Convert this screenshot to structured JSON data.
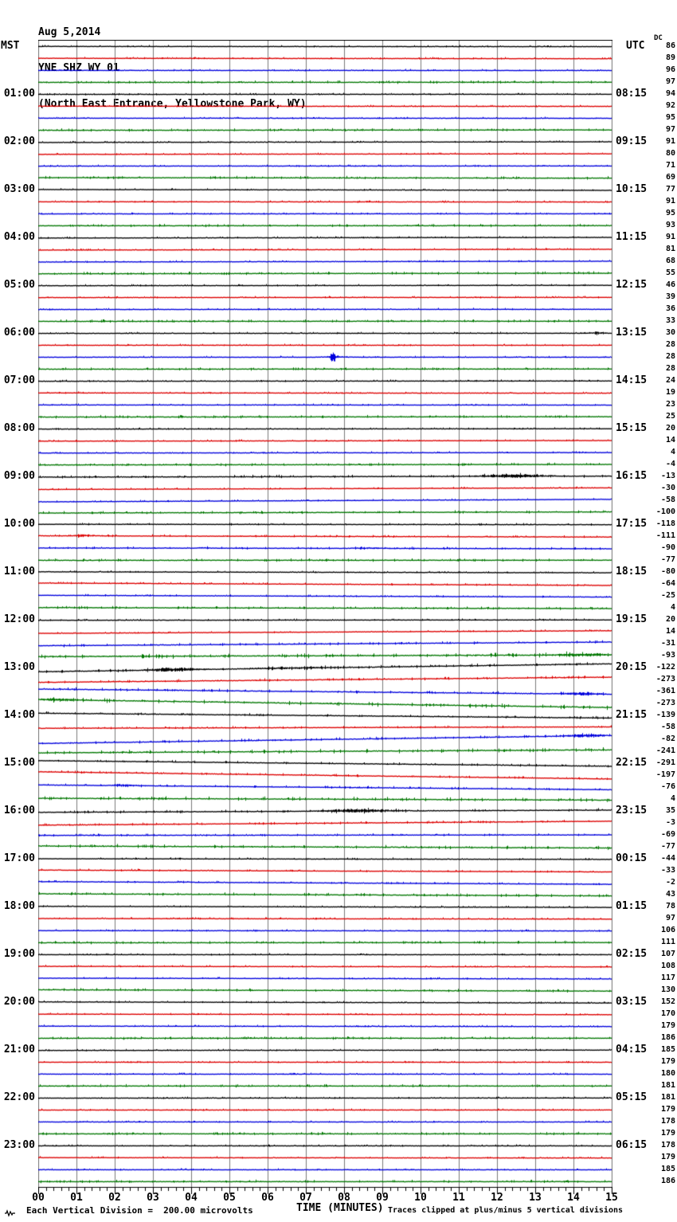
{
  "header": {
    "date": "Aug 5,2014",
    "station": "YNE SHZ WY 01",
    "location": "(North East Entrance, Yellowstone Park, WY)"
  },
  "left_axis": {
    "label": "MST",
    "times": [
      "01:00",
      "02:00",
      "03:00",
      "04:00",
      "05:00",
      "06:00",
      "07:00",
      "08:00",
      "09:00",
      "10:00",
      "11:00",
      "12:00",
      "13:00",
      "14:00",
      "15:00",
      "16:00",
      "17:00",
      "18:00",
      "19:00",
      "20:00",
      "21:00",
      "22:00",
      "23:00"
    ]
  },
  "right_axis": {
    "label": "UTC",
    "dc_label": "DC",
    "times": [
      "08:15",
      "09:15",
      "10:15",
      "11:15",
      "12:15",
      "13:15",
      "14:15",
      "15:15",
      "16:15",
      "17:15",
      "18:15",
      "19:15",
      "20:15",
      "21:15",
      "22:15",
      "23:15",
      "00:15",
      "01:15",
      "02:15",
      "03:15",
      "04:15",
      "05:15",
      "06:15"
    ]
  },
  "x_axis": {
    "tick_labels": [
      "00",
      "01",
      "02",
      "03",
      "04",
      "05",
      "06",
      "07",
      "08",
      "09",
      "10",
      "11",
      "12",
      "13",
      "14",
      "15"
    ]
  },
  "footer": {
    "scale_note": "Each Vertical Division =  200.00 microvolts",
    "time_axis_label": "TIME (MINUTES)",
    "clip_note": "Traces clipped at plus/minus 5 vertical divisions"
  },
  "chart_data": {
    "type": "line",
    "title": "Helicorder seismogram YNE SHZ WY 01, Aug 5 2014",
    "x_range_minutes": [
      0,
      15
    ],
    "minutes_per_row": 15,
    "rows": 96,
    "row_color_cycle": [
      "#000000",
      "#dd0000",
      "#0000dd",
      "#007700"
    ],
    "grid_color": "#7a7a7a",
    "clip_divisions": 5,
    "microvolts_per_division": 200.0,
    "dc_values": [
      86,
      89,
      96,
      97,
      94,
      92,
      95,
      97,
      91,
      80,
      71,
      69,
      77,
      91,
      95,
      93,
      91,
      81,
      68,
      55,
      46,
      39,
      36,
      33,
      30,
      28,
      28,
      28,
      24,
      19,
      23,
      25,
      20,
      14,
      4,
      -4,
      -13,
      -30,
      -58,
      -100,
      -118,
      -111,
      -90,
      -77,
      -80,
      -64,
      -25,
      4,
      20,
      14,
      -31,
      -93,
      -122,
      -273,
      -361,
      -273,
      -139,
      -58,
      -82,
      -241,
      -291,
      -197,
      -76,
      4,
      35,
      -3,
      -69,
      -77,
      -44,
      -33,
      -2,
      43,
      78,
      97,
      106,
      111,
      107,
      108,
      117,
      130,
      152,
      170,
      179,
      186,
      185,
      179,
      180,
      181,
      181,
      179,
      178,
      179,
      178,
      179,
      185,
      186
    ],
    "noisy_rows": {
      "36": 1.5,
      "40": 1.2,
      "41": 1.2,
      "42": 1.3,
      "45": 1.1,
      "46": 1.1,
      "50": 1.5,
      "51": 1.5,
      "52": 1.6,
      "53": 1.5,
      "54": 1.5,
      "55": 1.5,
      "56": 1.3,
      "57": 1.3,
      "58": 1.5,
      "59": 1.4,
      "60": 1.3,
      "61": 1.3,
      "62": 1.3,
      "63": 1.3,
      "64": 1.4,
      "65": 1.3,
      "66": 1.2,
      "67": 1.2,
      "68": 1.1,
      "69": 1.1,
      "70": 1.1,
      "71": 1.1
    },
    "events": [
      {
        "row": 24,
        "start_min": 14.3,
        "end_min": 14.9,
        "amp": 2.5,
        "kind": "burst"
      },
      {
        "row": 26,
        "start_min": 7.55,
        "end_min": 7.85,
        "amp": 10.5,
        "kind": "spike"
      },
      {
        "row": 26,
        "start_min": 7.2,
        "end_min": 8.4,
        "amp": 2,
        "kind": "burst"
      },
      {
        "row": 36,
        "start_min": 11.2,
        "end_min": 13.8,
        "amp": 4,
        "peak_min": 12.3,
        "kind": "burst"
      },
      {
        "row": 41,
        "start_min": 0.85,
        "end_min": 1.7,
        "amp": 3,
        "peak_min": 1.1,
        "kind": "burst"
      },
      {
        "row": 42,
        "start_min": 4.0,
        "end_min": 4.7,
        "amp": 1.3,
        "kind": "burst"
      },
      {
        "row": 42,
        "start_min": 8.0,
        "end_min": 9.2,
        "amp": 1.6,
        "kind": "burst"
      },
      {
        "row": 51,
        "start_min": 13.2,
        "end_min": 15.0,
        "amp": 3,
        "peak_min": 14.2,
        "kind": "burst"
      },
      {
        "row": 52,
        "start_min": 2.6,
        "end_min": 4.6,
        "amp": 4.5,
        "peak_min": 3.4,
        "kind": "burst"
      },
      {
        "row": 52,
        "start_min": 4.6,
        "end_min": 8.5,
        "amp": 1.6,
        "kind": "burst"
      },
      {
        "row": 54,
        "start_min": 13.3,
        "end_min": 15.0,
        "amp": 3.5,
        "peak_min": 14.3,
        "kind": "burst"
      },
      {
        "row": 55,
        "start_min": 0.0,
        "end_min": 1.4,
        "amp": 3,
        "peak_min": 0.4,
        "kind": "burst"
      },
      {
        "row": 58,
        "start_min": 13.4,
        "end_min": 15.0,
        "amp": 4,
        "peak_min": 14.4,
        "kind": "burst"
      },
      {
        "row": 62,
        "start_min": 1.75,
        "end_min": 2.75,
        "amp": 3,
        "peak_min": 2.15,
        "kind": "burst"
      },
      {
        "row": 64,
        "start_min": 6.9,
        "end_min": 9.9,
        "amp": 4,
        "peak_min": 8.3,
        "kind": "burst"
      },
      {
        "row": 70,
        "start_min": 3.5,
        "end_min": 4.1,
        "amp": 1.5,
        "kind": "burst"
      }
    ]
  }
}
